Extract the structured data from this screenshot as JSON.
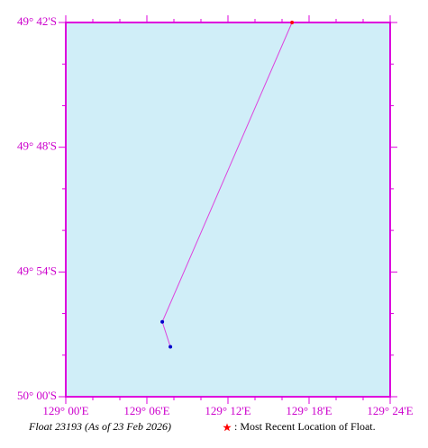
{
  "chart_data": {
    "type": "line",
    "caption": "Float 23193 (As of 23 Feb 2026)",
    "legend_text": ": Most Recent Location of Float.",
    "x": [
      129.129,
      129.119,
      129.279
    ],
    "series": [
      {
        "values": [
          -49.96,
          -49.94,
          -49.7
        ],
        "color": "#dd44dd",
        "marker_color": "#0000cc",
        "latest_color": "#ff0000"
      }
    ],
    "xlim": [
      129.0,
      129.4
    ],
    "ylim": [
      -50.0,
      -49.7
    ],
    "xticks": [
      {
        "value": 129.0,
        "label": "129° 00'E"
      },
      {
        "value": 129.1,
        "label": "129° 06'E"
      },
      {
        "value": 129.2,
        "label": "129° 12'E"
      },
      {
        "value": 129.3,
        "label": "129° 18'E"
      },
      {
        "value": 129.4,
        "label": "129° 24'E"
      }
    ],
    "yticks": [
      {
        "value": -49.7,
        "label": "49° 42'S"
      },
      {
        "value": -49.8,
        "label": "49° 48'S"
      },
      {
        "value": -49.9,
        "label": "49° 54'S"
      },
      {
        "value": -50.0,
        "label": "50° 00'S"
      }
    ],
    "background": "#d0eef8",
    "frame_color": "#dd00dd"
  }
}
